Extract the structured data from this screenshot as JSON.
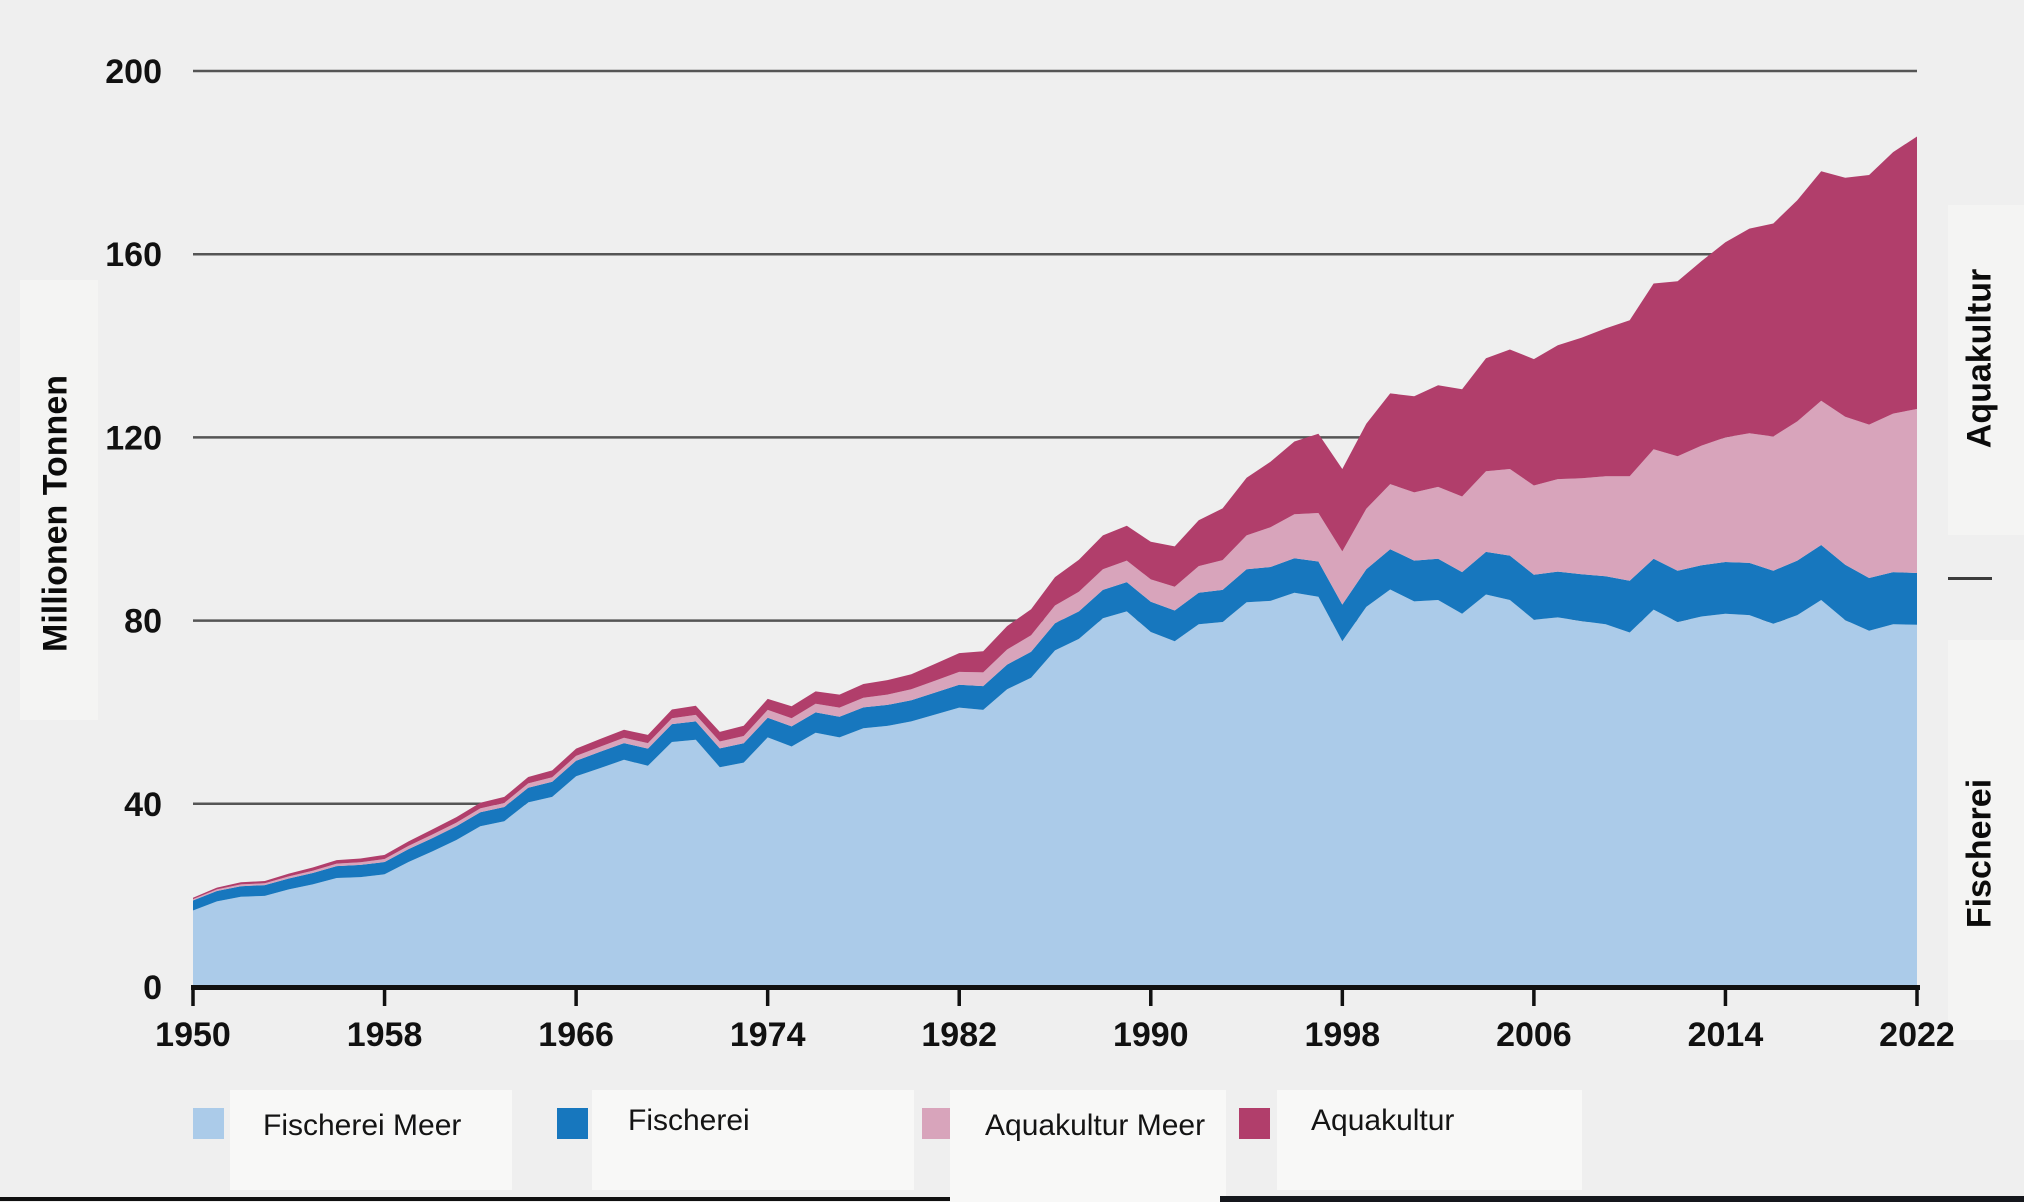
{
  "colors": {
    "background": "#efefef",
    "panel": "#f4f4f3",
    "legend_box": "#f8f8f7",
    "grid": "#555555",
    "axis": "#101010",
    "text": "#111111",
    "bottom_bar_left": "#101010",
    "bottom_bar_right": "#15171c"
  },
  "side_labels": {
    "left": "Millionen Tonnen",
    "right_top": "Aquakultur",
    "right_bottom": "Fischerei"
  },
  "legend": [
    {
      "label": "Fischerei Meer"
    },
    {
      "label": "Fischerei"
    },
    {
      "label": "Aquakultur Meer"
    },
    {
      "label": "Aquakultur"
    }
  ],
  "chart_data": {
    "type": "area",
    "stacked": true,
    "title": "",
    "xlabel": "",
    "ylabel": "Millionen Tonnen",
    "ylim": [
      0,
      200
    ],
    "yticks": [
      0,
      40,
      80,
      120,
      160,
      200
    ],
    "xticks": [
      1950,
      1958,
      1966,
      1974,
      1982,
      1990,
      1998,
      2006,
      2014,
      2022
    ],
    "grid": true,
    "legend_position": "bottom",
    "x": [
      1950,
      1951,
      1952,
      1953,
      1954,
      1955,
      1956,
      1957,
      1958,
      1959,
      1960,
      1961,
      1962,
      1963,
      1964,
      1965,
      1966,
      1967,
      1968,
      1969,
      1970,
      1971,
      1972,
      1973,
      1974,
      1975,
      1976,
      1977,
      1978,
      1979,
      1980,
      1981,
      1982,
      1983,
      1984,
      1985,
      1986,
      1987,
      1988,
      1989,
      1990,
      1991,
      1992,
      1993,
      1994,
      1995,
      1996,
      1997,
      1998,
      1999,
      2000,
      2001,
      2002,
      2003,
      2004,
      2005,
      2006,
      2007,
      2008,
      2009,
      2010,
      2011,
      2012,
      2013,
      2014,
      2015,
      2016,
      2017,
      2018,
      2019,
      2020,
      2021,
      2022
    ],
    "series": [
      {
        "name": "Fischerei Meer",
        "color": "#abcbe9",
        "values": [
          16.7,
          18.7,
          19.7,
          19.9,
          21.3,
          22.4,
          23.8,
          24.0,
          24.6,
          27.3,
          29.6,
          32.1,
          35.1,
          36.2,
          40.3,
          41.5,
          46.0,
          47.8,
          49.6,
          48.3,
          53.5,
          54.0,
          48.0,
          49.0,
          54.5,
          52.5,
          55.5,
          54.5,
          56.5,
          57.0,
          58.0,
          59.5,
          61.0,
          60.5,
          65.0,
          67.5,
          73.5,
          76.0,
          80.5,
          82.0,
          77.5,
          75.5,
          79.2,
          79.7,
          84.0,
          84.3,
          86.1,
          85.2,
          75.5,
          83.0,
          86.8,
          84.2,
          84.5,
          81.5,
          85.7,
          84.5,
          80.2,
          80.7,
          79.9,
          79.2,
          77.4,
          82.4,
          79.7,
          80.9,
          81.5,
          81.2,
          79.3,
          81.2,
          84.5,
          80.1,
          77.8,
          79.2,
          79.1
        ]
      },
      {
        "name": "Fischerei",
        "color": "#1777be",
        "values": [
          2.2,
          2.25,
          2.3,
          2.35,
          2.4,
          2.5,
          2.6,
          2.65,
          2.7,
          2.8,
          2.9,
          3.0,
          3.05,
          3.1,
          3.2,
          3.3,
          3.4,
          3.55,
          3.65,
          3.75,
          3.9,
          4.0,
          4.1,
          4.2,
          4.3,
          4.4,
          4.45,
          4.5,
          4.55,
          4.6,
          4.6,
          4.8,
          5.0,
          5.2,
          5.4,
          5.7,
          5.9,
          6.0,
          6.2,
          6.4,
          6.6,
          6.7,
          6.9,
          7.0,
          7.2,
          7.4,
          7.5,
          7.7,
          8.0,
          8.2,
          8.8,
          8.9,
          9.0,
          9.1,
          9.3,
          9.7,
          9.8,
          10.0,
          10.2,
          10.5,
          11.3,
          11.1,
          11.2,
          11.2,
          11.3,
          11.4,
          11.6,
          11.9,
          12.0,
          12.1,
          11.5,
          11.4,
          11.3
        ]
      },
      {
        "name": "Aquakultur Meer",
        "color": "#d8a4bb",
        "values": [
          0.3,
          0.35,
          0.4,
          0.4,
          0.45,
          0.5,
          0.55,
          0.6,
          0.65,
          0.7,
          0.8,
          0.8,
          0.85,
          0.9,
          0.95,
          1.0,
          1.05,
          1.1,
          1.15,
          1.2,
          1.3,
          1.4,
          1.5,
          1.6,
          1.7,
          1.8,
          1.9,
          2.0,
          2.1,
          2.25,
          2.4,
          2.6,
          2.8,
          3.0,
          3.3,
          3.6,
          3.9,
          4.3,
          4.5,
          4.7,
          4.9,
          5.2,
          5.8,
          6.5,
          7.4,
          8.7,
          9.6,
          10.6,
          11.6,
          13.2,
          14.2,
          14.9,
          15.7,
          16.5,
          17.6,
          18.9,
          19.5,
          20.2,
          21.0,
          21.8,
          22.8,
          23.9,
          25.0,
          26.1,
          27.2,
          28.3,
          29.3,
          30.4,
          31.5,
          32.3,
          33.5,
          34.6,
          35.8
        ]
      },
      {
        "name": "Aquakultur",
        "color": "#b13e6b",
        "values": [
          0.3,
          0.4,
          0.45,
          0.5,
          0.6,
          0.7,
          0.75,
          0.8,
          0.9,
          1.0,
          1.1,
          1.2,
          1.25,
          1.3,
          1.4,
          1.5,
          1.6,
          1.7,
          1.75,
          1.8,
          1.9,
          2.0,
          2.1,
          2.25,
          2.4,
          2.6,
          2.7,
          2.85,
          3.0,
          3.15,
          3.3,
          3.7,
          4.1,
          4.6,
          5.1,
          5.7,
          6.2,
          7.0,
          7.4,
          7.6,
          8.2,
          8.8,
          10.0,
          11.3,
          12.6,
          14.3,
          15.9,
          17.3,
          18.0,
          18.6,
          19.8,
          21.0,
          22.2,
          23.4,
          24.7,
          26.1,
          27.6,
          29.2,
          30.7,
          32.3,
          34.1,
          36.2,
          38.2,
          40.3,
          42.6,
          44.7,
          46.5,
          48.3,
          50.1,
          52.2,
          54.5,
          57.1,
          59.5
        ]
      }
    ]
  }
}
